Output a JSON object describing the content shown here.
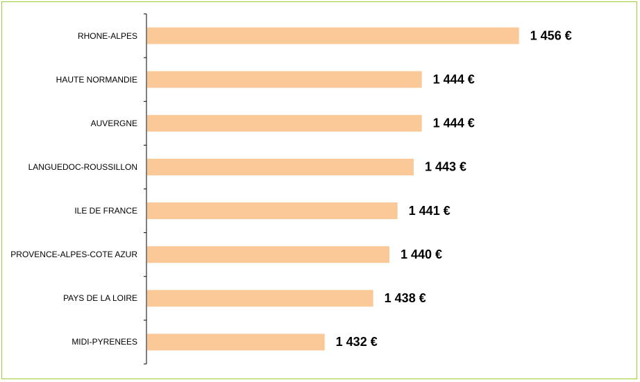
{
  "chart_data": {
    "type": "bar",
    "orientation": "horizontal",
    "categories": [
      "RHONE-ALPES",
      "HAUTE NORMANDIE",
      "AUVERGNE",
      "LANGUEDOC-ROUSSILLON",
      "ILE DE FRANCE",
      "PROVENCE-ALPES-COTE AZUR",
      "PAYS DE LA LOIRE",
      "MIDI-PYRENEES"
    ],
    "values": [
      1456,
      1444,
      1444,
      1443,
      1441,
      1440,
      1438,
      1432
    ],
    "value_labels": [
      "1 456 €",
      "1 444 €",
      "1 444 €",
      "1 443 €",
      "1 441 €",
      "1 440 €",
      "1 438 €",
      "1 432 €"
    ],
    "color": "#fbc898",
    "xlim": [
      1410,
      1470
    ]
  }
}
